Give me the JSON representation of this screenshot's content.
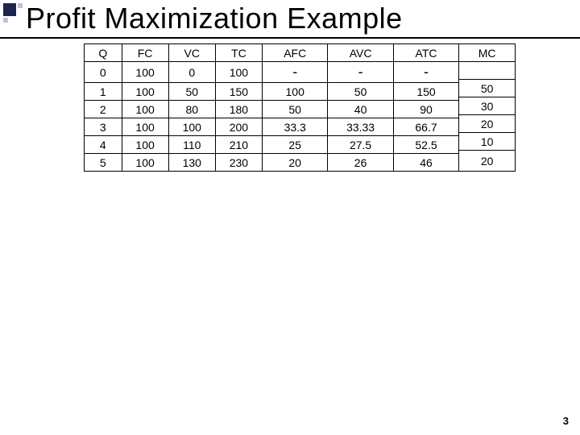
{
  "title": "Profit Maximization Example",
  "slide_number": "3",
  "columns": [
    "Q",
    "FC",
    "VC",
    "TC",
    "AFC",
    "AVC",
    "ATC",
    "MC"
  ],
  "r0": {
    "q": "0",
    "fc": "100",
    "vc": "0",
    "tc": "100",
    "afc": "-",
    "avc": "-",
    "atc": "-"
  },
  "mc01": "50",
  "r1": {
    "q": "1",
    "fc": "100",
    "vc": "50",
    "tc": "150",
    "afc": "100",
    "avc": "50",
    "atc": "150"
  },
  "mc12": "30",
  "r2": {
    "q": "2",
    "fc": "100",
    "vc": "80",
    "tc": "180",
    "afc": "50",
    "avc": "40",
    "atc": "90"
  },
  "mc23": "20",
  "r3": {
    "q": "3",
    "fc": "100",
    "vc": "100",
    "tc": "200",
    "afc": "33.3",
    "avc": "33.33",
    "atc": "66.7"
  },
  "mc34": "10",
  "r4": {
    "q": "4",
    "fc": "100",
    "vc": "110",
    "tc": "210",
    "afc": "25",
    "avc": "27.5",
    "atc": "52.5"
  },
  "mc45": "20",
  "r5": {
    "q": "5",
    "fc": "100",
    "vc": "130",
    "tc": "230",
    "afc": "20",
    "avc": "26",
    "atc": "46"
  }
}
